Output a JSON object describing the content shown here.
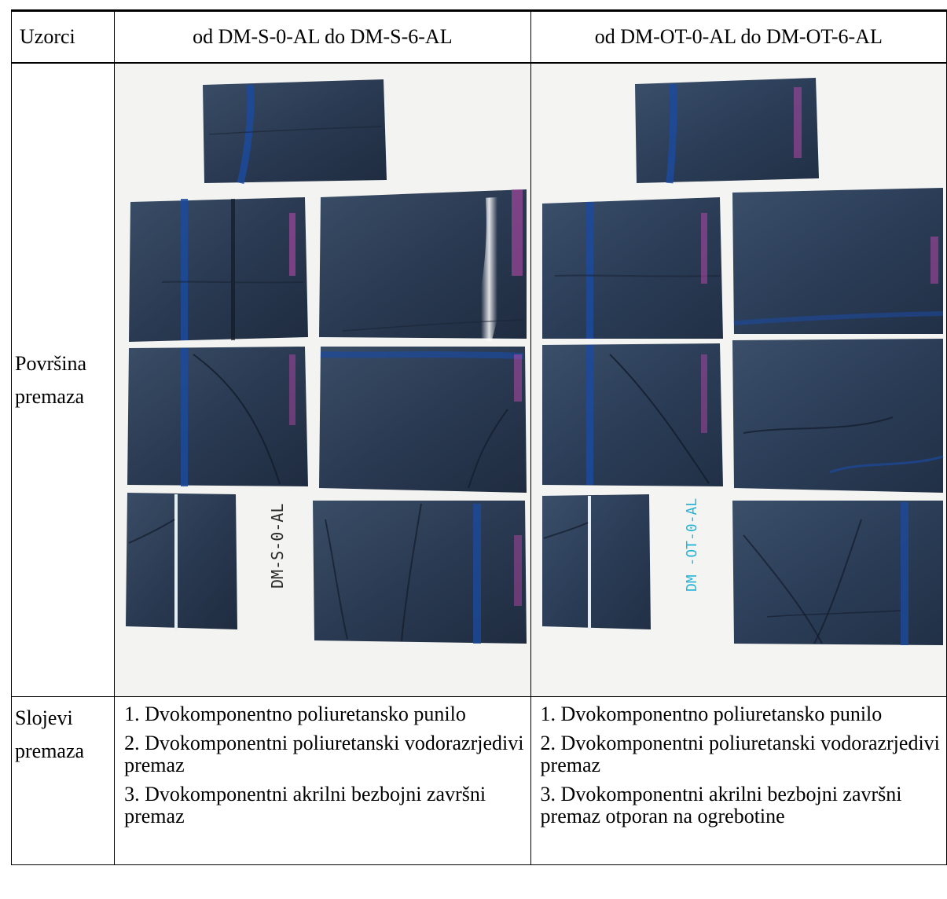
{
  "header": {
    "samples_label": "Uzorci",
    "column_a": "od DM-S-0-AL do DM-S-6-AL",
    "column_b": "od DM-OT-0-AL do DM-OT-6-AL"
  },
  "surface_row": {
    "label_line1": "Površina",
    "label_line2": "premaza",
    "photo_a": {
      "sample_mark": "DM-S-0-AL",
      "mark_color": "#2b2b2b"
    },
    "photo_b": {
      "sample_mark": "DM -OT-0-AL",
      "mark_color": "#27b4d8"
    },
    "panel_color": "#2c3c55",
    "magenta_mark_color": "#c04ab0"
  },
  "layers_row": {
    "label_line1": "Slojevi",
    "label_line2": "premaza",
    "column_a": [
      "1. Dvokomponentno poliuretansko punilo",
      "2. Dvokomponentni poliuretanski vodorazrjedivi premaz",
      "3. Dvokomponentni akrilni bezbojni završni premaz"
    ],
    "column_b": [
      "1. Dvokomponentno poliuretansko punilo",
      "2. Dvokomponentni poliuretanski vodorazrjedivi premaz",
      "3. Dvokomponentni akrilni bezbojni završni premaz otporan na ogrebotine"
    ]
  }
}
